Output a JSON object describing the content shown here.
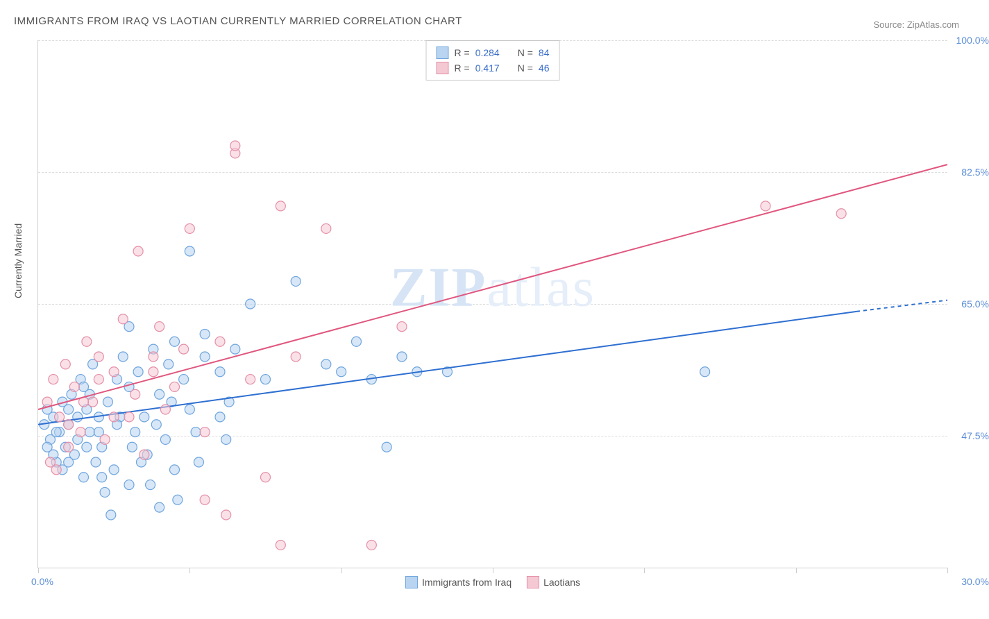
{
  "title": "IMMIGRANTS FROM IRAQ VS LAOTIAN CURRENTLY MARRIED CORRELATION CHART",
  "source": "Source: ZipAtlas.com",
  "watermark_bold": "ZIP",
  "watermark_rest": "atlas",
  "ylabel": "Currently Married",
  "chart": {
    "type": "scatter-with-regression",
    "xlim": [
      0,
      30
    ],
    "ylim": [
      30,
      100
    ],
    "x_min_label": "0.0%",
    "x_max_label": "30.0%",
    "y_ticks": [
      47.5,
      65.0,
      82.5,
      100.0
    ],
    "y_tick_labels": [
      "47.5%",
      "65.0%",
      "82.5%",
      "100.0%"
    ],
    "x_ticks": [
      0,
      5,
      10,
      15,
      20,
      25,
      30
    ],
    "background_color": "#ffffff",
    "grid_color": "#dcdcdc",
    "marker_radius": 7,
    "marker_opacity": 0.55,
    "line_width": 2,
    "series": [
      {
        "name": "Immigrants from Iraq",
        "color_fill": "#b8d4f0",
        "color_stroke": "#6fa5de",
        "line_color": "#2e6fd1",
        "R": "0.284",
        "N": "84",
        "reg_start": {
          "x": 0,
          "y": 49
        },
        "reg_end": {
          "x": 27,
          "y": 64
        },
        "reg_dash_end": {
          "x": 30,
          "y": 65.5
        },
        "points": [
          {
            "x": 0.2,
            "y": 49
          },
          {
            "x": 0.3,
            "y": 51
          },
          {
            "x": 0.4,
            "y": 47
          },
          {
            "x": 0.5,
            "y": 50
          },
          {
            "x": 0.6,
            "y": 44
          },
          {
            "x": 0.7,
            "y": 48
          },
          {
            "x": 0.8,
            "y": 52
          },
          {
            "x": 0.9,
            "y": 46
          },
          {
            "x": 1.0,
            "y": 49
          },
          {
            "x": 1.1,
            "y": 53
          },
          {
            "x": 1.2,
            "y": 45
          },
          {
            "x": 1.3,
            "y": 50
          },
          {
            "x": 1.4,
            "y": 55
          },
          {
            "x": 1.5,
            "y": 42
          },
          {
            "x": 1.6,
            "y": 51
          },
          {
            "x": 1.7,
            "y": 48
          },
          {
            "x": 1.8,
            "y": 57
          },
          {
            "x": 1.9,
            "y": 44
          },
          {
            "x": 2.0,
            "y": 50
          },
          {
            "x": 2.1,
            "y": 46
          },
          {
            "x": 2.2,
            "y": 40
          },
          {
            "x": 2.3,
            "y": 52
          },
          {
            "x": 2.5,
            "y": 43
          },
          {
            "x": 2.6,
            "y": 55
          },
          {
            "x": 2.8,
            "y": 58
          },
          {
            "x": 3.0,
            "y": 41
          },
          {
            "x": 3.0,
            "y": 62
          },
          {
            "x": 3.2,
            "y": 48
          },
          {
            "x": 3.3,
            "y": 56
          },
          {
            "x": 3.5,
            "y": 50
          },
          {
            "x": 3.6,
            "y": 45
          },
          {
            "x": 3.8,
            "y": 59
          },
          {
            "x": 4.0,
            "y": 53
          },
          {
            "x": 4.0,
            "y": 38
          },
          {
            "x": 4.2,
            "y": 47
          },
          {
            "x": 4.3,
            "y": 57
          },
          {
            "x": 4.5,
            "y": 60
          },
          {
            "x": 4.5,
            "y": 43
          },
          {
            "x": 4.8,
            "y": 55
          },
          {
            "x": 5.0,
            "y": 51
          },
          {
            "x": 5.0,
            "y": 72
          },
          {
            "x": 5.2,
            "y": 48
          },
          {
            "x": 5.5,
            "y": 58
          },
          {
            "x": 5.5,
            "y": 61
          },
          {
            "x": 6.0,
            "y": 50
          },
          {
            "x": 6.0,
            "y": 56
          },
          {
            "x": 6.2,
            "y": 47
          },
          {
            "x": 6.5,
            "y": 59
          },
          {
            "x": 7.0,
            "y": 65
          },
          {
            "x": 7.5,
            "y": 55
          },
          {
            "x": 8.5,
            "y": 68
          },
          {
            "x": 9.5,
            "y": 57
          },
          {
            "x": 10.0,
            "y": 56
          },
          {
            "x": 10.5,
            "y": 60
          },
          {
            "x": 11.0,
            "y": 55
          },
          {
            "x": 11.5,
            "y": 46
          },
          {
            "x": 12.0,
            "y": 58
          },
          {
            "x": 12.5,
            "y": 56
          },
          {
            "x": 13.5,
            "y": 56
          },
          {
            "x": 22.0,
            "y": 56
          },
          {
            "x": 2.4,
            "y": 37
          },
          {
            "x": 1.5,
            "y": 54
          },
          {
            "x": 1.0,
            "y": 44
          },
          {
            "x": 0.5,
            "y": 45
          },
          {
            "x": 0.8,
            "y": 43
          },
          {
            "x": 1.6,
            "y": 46
          },
          {
            "x": 2.0,
            "y": 48
          },
          {
            "x": 2.7,
            "y": 50
          },
          {
            "x": 3.1,
            "y": 46
          },
          {
            "x": 3.4,
            "y": 44
          },
          {
            "x": 3.9,
            "y": 49
          },
          {
            "x": 4.4,
            "y": 52
          },
          {
            "x": 5.3,
            "y": 44
          },
          {
            "x": 6.3,
            "y": 52
          },
          {
            "x": 0.3,
            "y": 46
          },
          {
            "x": 0.6,
            "y": 48
          },
          {
            "x": 1.0,
            "y": 51
          },
          {
            "x": 1.3,
            "y": 47
          },
          {
            "x": 1.7,
            "y": 53
          },
          {
            "x": 2.1,
            "y": 42
          },
          {
            "x": 2.6,
            "y": 49
          },
          {
            "x": 3.0,
            "y": 54
          },
          {
            "x": 4.6,
            "y": 39
          },
          {
            "x": 3.7,
            "y": 41
          }
        ]
      },
      {
        "name": "Laotians",
        "color_fill": "#f5c9d4",
        "color_stroke": "#e48fa8",
        "line_color": "#e0567e",
        "R": "0.417",
        "N": "46",
        "reg_start": {
          "x": 0,
          "y": 51
        },
        "reg_end": {
          "x": 30,
          "y": 83.5
        },
        "points": [
          {
            "x": 0.3,
            "y": 52
          },
          {
            "x": 0.5,
            "y": 55
          },
          {
            "x": 0.7,
            "y": 50
          },
          {
            "x": 0.9,
            "y": 57
          },
          {
            "x": 1.0,
            "y": 46
          },
          {
            "x": 1.2,
            "y": 54
          },
          {
            "x": 1.4,
            "y": 48
          },
          {
            "x": 1.6,
            "y": 60
          },
          {
            "x": 1.8,
            "y": 52
          },
          {
            "x": 2.0,
            "y": 58
          },
          {
            "x": 2.2,
            "y": 47
          },
          {
            "x": 2.5,
            "y": 56
          },
          {
            "x": 2.8,
            "y": 63
          },
          {
            "x": 3.0,
            "y": 50
          },
          {
            "x": 3.3,
            "y": 72
          },
          {
            "x": 3.5,
            "y": 45
          },
          {
            "x": 3.8,
            "y": 58
          },
          {
            "x": 4.0,
            "y": 62
          },
          {
            "x": 4.5,
            "y": 54
          },
          {
            "x": 5.0,
            "y": 75
          },
          {
            "x": 5.5,
            "y": 48
          },
          {
            "x": 6.0,
            "y": 60
          },
          {
            "x": 6.5,
            "y": 85
          },
          {
            "x": 7.0,
            "y": 55
          },
          {
            "x": 7.5,
            "y": 42
          },
          {
            "x": 8.0,
            "y": 78
          },
          {
            "x": 8.5,
            "y": 58
          },
          {
            "x": 9.5,
            "y": 75
          },
          {
            "x": 12.0,
            "y": 62
          },
          {
            "x": 26.5,
            "y": 77
          },
          {
            "x": 24.0,
            "y": 78
          },
          {
            "x": 1.0,
            "y": 49
          },
          {
            "x": 1.5,
            "y": 52
          },
          {
            "x": 2.0,
            "y": 55
          },
          {
            "x": 2.5,
            "y": 50
          },
          {
            "x": 3.2,
            "y": 53
          },
          {
            "x": 3.8,
            "y": 56
          },
          {
            "x": 4.2,
            "y": 51
          },
          {
            "x": 4.8,
            "y": 59
          },
          {
            "x": 5.5,
            "y": 39
          },
          {
            "x": 6.2,
            "y": 37
          },
          {
            "x": 8.0,
            "y": 33
          },
          {
            "x": 11.0,
            "y": 33
          },
          {
            "x": 0.4,
            "y": 44
          },
          {
            "x": 0.6,
            "y": 43
          },
          {
            "x": 6.5,
            "y": 86
          }
        ]
      }
    ]
  },
  "legend_top": {
    "rows": [
      {
        "swatch_fill": "#b8d4f0",
        "swatch_stroke": "#6fa5de",
        "r_label": "R =",
        "r_val": "0.284",
        "n_label": "N =",
        "n_val": "84"
      },
      {
        "swatch_fill": "#f5c9d4",
        "swatch_stroke": "#e48fa8",
        "r_label": "R =",
        "r_val": "0.417",
        "n_label": "N =",
        "n_val": "46"
      }
    ]
  },
  "legend_bottom": {
    "items": [
      {
        "swatch_fill": "#b8d4f0",
        "swatch_stroke": "#6fa5de",
        "label": "Immigrants from Iraq"
      },
      {
        "swatch_fill": "#f5c9d4",
        "swatch_stroke": "#e48fa8",
        "label": "Laotians"
      }
    ]
  }
}
